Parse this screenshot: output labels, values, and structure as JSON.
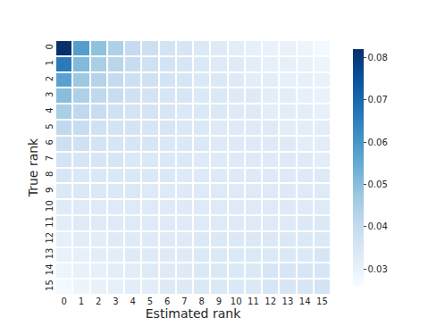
{
  "chart_data": {
    "type": "heatmap",
    "x_label": "Estimated rank",
    "y_label": "True rank",
    "categories": [
      "0",
      "1",
      "2",
      "3",
      "4",
      "5",
      "6",
      "7",
      "8",
      "9",
      "10",
      "11",
      "12",
      "13",
      "14",
      "15"
    ],
    "y_categories": [
      "0",
      "1",
      "2",
      "3",
      "4",
      "5",
      "6",
      "7",
      "8",
      "9",
      "10",
      "11",
      "12",
      "13",
      "14",
      "15"
    ],
    "cells": [
      [
        0.082,
        0.058,
        0.049,
        0.044,
        0.04,
        0.038,
        0.036,
        0.035,
        0.034,
        0.033,
        0.032,
        0.031,
        0.03,
        0.03,
        0.029,
        0.027
      ],
      [
        0.066,
        0.051,
        0.045,
        0.042,
        0.039,
        0.037,
        0.036,
        0.035,
        0.034,
        0.033,
        0.033,
        0.032,
        0.031,
        0.031,
        0.03,
        0.029
      ],
      [
        0.057,
        0.047,
        0.043,
        0.04,
        0.038,
        0.037,
        0.036,
        0.035,
        0.034,
        0.034,
        0.033,
        0.032,
        0.032,
        0.031,
        0.031,
        0.03
      ],
      [
        0.05,
        0.044,
        0.041,
        0.039,
        0.037,
        0.036,
        0.035,
        0.035,
        0.034,
        0.034,
        0.033,
        0.033,
        0.032,
        0.032,
        0.031,
        0.03
      ],
      [
        0.045,
        0.041,
        0.039,
        0.037,
        0.036,
        0.036,
        0.035,
        0.034,
        0.034,
        0.034,
        0.033,
        0.033,
        0.032,
        0.032,
        0.032,
        0.031
      ],
      [
        0.041,
        0.039,
        0.037,
        0.036,
        0.036,
        0.035,
        0.035,
        0.034,
        0.034,
        0.033,
        0.033,
        0.033,
        0.033,
        0.032,
        0.032,
        0.032
      ],
      [
        0.038,
        0.037,
        0.036,
        0.035,
        0.035,
        0.035,
        0.034,
        0.034,
        0.034,
        0.033,
        0.033,
        0.033,
        0.033,
        0.033,
        0.032,
        0.032
      ],
      [
        0.036,
        0.035,
        0.035,
        0.035,
        0.034,
        0.034,
        0.034,
        0.034,
        0.033,
        0.033,
        0.033,
        0.033,
        0.033,
        0.033,
        0.033,
        0.032
      ],
      [
        0.035,
        0.034,
        0.034,
        0.034,
        0.034,
        0.034,
        0.034,
        0.033,
        0.033,
        0.033,
        0.033,
        0.033,
        0.033,
        0.033,
        0.033,
        0.033
      ],
      [
        0.034,
        0.034,
        0.034,
        0.034,
        0.034,
        0.033,
        0.033,
        0.033,
        0.033,
        0.033,
        0.033,
        0.033,
        0.033,
        0.033,
        0.033,
        0.033
      ],
      [
        0.033,
        0.033,
        0.033,
        0.033,
        0.033,
        0.033,
        0.033,
        0.033,
        0.033,
        0.033,
        0.033,
        0.033,
        0.033,
        0.033,
        0.033,
        0.033
      ],
      [
        0.032,
        0.033,
        0.033,
        0.033,
        0.033,
        0.033,
        0.033,
        0.033,
        0.033,
        0.033,
        0.033,
        0.033,
        0.033,
        0.033,
        0.034,
        0.034
      ],
      [
        0.031,
        0.032,
        0.032,
        0.033,
        0.033,
        0.033,
        0.033,
        0.033,
        0.034,
        0.034,
        0.034,
        0.034,
        0.034,
        0.034,
        0.034,
        0.034
      ],
      [
        0.03,
        0.031,
        0.032,
        0.032,
        0.033,
        0.033,
        0.033,
        0.033,
        0.034,
        0.034,
        0.034,
        0.034,
        0.034,
        0.034,
        0.034,
        0.035
      ],
      [
        0.029,
        0.03,
        0.031,
        0.032,
        0.032,
        0.033,
        0.033,
        0.033,
        0.034,
        0.034,
        0.034,
        0.034,
        0.035,
        0.035,
        0.035,
        0.035
      ],
      [
        0.027,
        0.029,
        0.03,
        0.031,
        0.032,
        0.032,
        0.033,
        0.033,
        0.034,
        0.034,
        0.034,
        0.034,
        0.035,
        0.035,
        0.035,
        0.036
      ]
    ],
    "colorbar": {
      "range": [
        0.026,
        0.082
      ],
      "ticks": [
        0.03,
        0.04,
        0.05,
        0.06,
        0.07,
        0.08
      ]
    }
  }
}
